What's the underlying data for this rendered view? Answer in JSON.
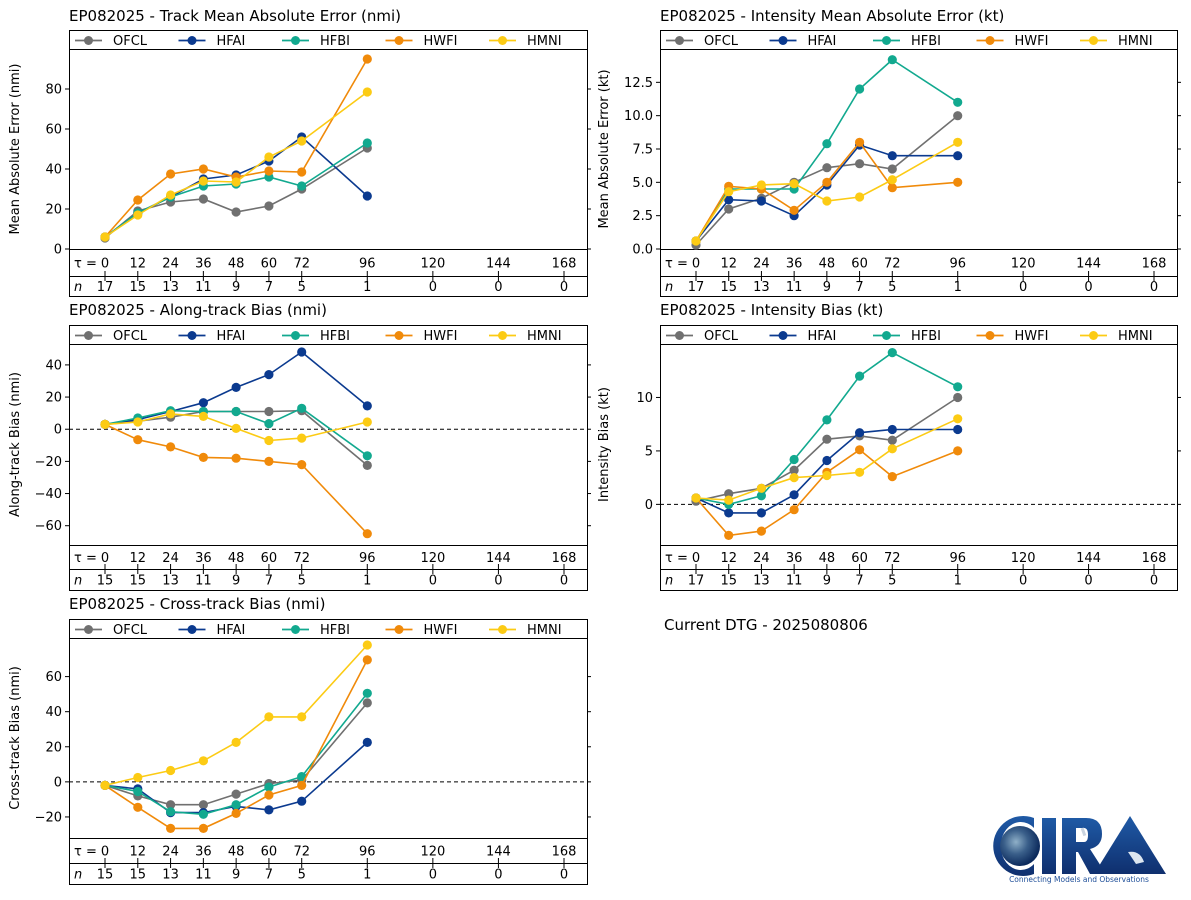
{
  "page": {
    "current_dtg_label": "Current DTG - 2025080806",
    "logo": {
      "name": "CIRA",
      "tagline": "Connecting Models and Observations"
    }
  },
  "legend": [
    {
      "name": "OFCL",
      "color": "#707070"
    },
    {
      "name": "HFAI",
      "color": "#0b3a8f"
    },
    {
      "name": "HFBI",
      "color": "#12a98f"
    },
    {
      "name": "HWFI",
      "color": "#f08a0a"
    },
    {
      "name": "HMNI",
      "color": "#fccb14"
    }
  ],
  "chart_data": [
    {
      "id": "track-mae",
      "type": "line",
      "title": "EP082025 - Track Mean Absolute Error (nmi)",
      "ylabel": "Mean Absolute Error (nmi)",
      "xlabel": "τ",
      "ylim": [
        0,
        100
      ],
      "yticks": [
        0,
        20,
        40,
        60,
        80
      ],
      "zero_line": false,
      "legend_position": "top",
      "x": [
        0,
        12,
        24,
        36,
        48,
        60,
        72,
        96
      ],
      "tau_ticks": [
        0,
        12,
        24,
        36,
        48,
        60,
        72,
        96,
        120,
        144,
        168
      ],
      "n": [
        17,
        15,
        13,
        11,
        9,
        7,
        5,
        1,
        0,
        0,
        0
      ],
      "series": [
        {
          "name": "OFCL",
          "values": [
            5.5,
            19,
            23.5,
            25,
            18.5,
            21.5,
            30,
            50.5
          ]
        },
        {
          "name": "HFAI",
          "values": [
            6,
            18,
            26,
            35,
            37,
            44,
            56,
            26.5
          ]
        },
        {
          "name": "HFBI",
          "values": [
            6,
            18,
            26,
            31.5,
            32.5,
            36,
            31.5,
            53
          ]
        },
        {
          "name": "HWFI",
          "values": [
            6,
            24.5,
            37.5,
            40,
            36,
            39,
            38.5,
            95
          ]
        },
        {
          "name": "HMNI",
          "values": [
            6,
            17,
            27,
            34,
            33.5,
            46,
            54,
            78.5
          ]
        }
      ]
    },
    {
      "id": "intensity-mae",
      "type": "line",
      "title": "EP082025 - Intensity Mean Absolute Error (kt)",
      "ylabel": "Mean Absolute Error (kt)",
      "xlabel": "τ",
      "ylim": [
        0,
        15
      ],
      "yticks": [
        0.0,
        2.5,
        5.0,
        7.5,
        10.0,
        12.5
      ],
      "ytick_labels": [
        "0.0",
        "2.5",
        "5.0",
        "7.5",
        "10.0",
        "12.5"
      ],
      "zero_line": false,
      "legend_position": "top",
      "x": [
        0,
        12,
        24,
        36,
        48,
        60,
        72,
        96
      ],
      "tau_ticks": [
        0,
        12,
        24,
        36,
        48,
        60,
        72,
        96,
        120,
        144,
        168
      ],
      "n": [
        17,
        15,
        13,
        11,
        9,
        7,
        5,
        1,
        0,
        0,
        0
      ],
      "series": [
        {
          "name": "OFCL",
          "values": [
            0.3,
            3.0,
            3.8,
            5.0,
            6.1,
            6.4,
            6.0,
            10.0
          ]
        },
        {
          "name": "HFAI",
          "values": [
            0.6,
            3.7,
            3.6,
            2.5,
            4.8,
            7.8,
            7.0,
            7.0
          ]
        },
        {
          "name": "HFBI",
          "values": [
            0.6,
            4.5,
            4.5,
            4.5,
            7.9,
            12.0,
            14.2,
            11.0
          ]
        },
        {
          "name": "HWFI",
          "values": [
            0.6,
            4.7,
            4.5,
            2.9,
            5.0,
            8.0,
            4.6,
            5.0
          ]
        },
        {
          "name": "HMNI",
          "values": [
            0.6,
            4.3,
            4.8,
            4.9,
            3.6,
            3.9,
            5.2,
            8.0
          ]
        }
      ]
    },
    {
      "id": "along-track-bias",
      "type": "line",
      "title": "EP082025 - Along-track Bias (nmi)",
      "ylabel": "Along-track Bias (nmi)",
      "xlabel": "τ",
      "ylim": [
        -72,
        53
      ],
      "yticks": [
        -60,
        -40,
        -20,
        0,
        20,
        40
      ],
      "ytick_labels": [
        "−60",
        "−40",
        "−20",
        "0",
        "20",
        "40"
      ],
      "zero_line": true,
      "legend_position": "top",
      "x": [
        0,
        12,
        24,
        36,
        48,
        60,
        72,
        96
      ],
      "tau_ticks": [
        0,
        12,
        24,
        36,
        48,
        60,
        72,
        96,
        120,
        144,
        168
      ],
      "n": [
        15,
        15,
        13,
        11,
        9,
        7,
        5,
        1,
        0,
        0,
        0
      ],
      "series": [
        {
          "name": "OFCL",
          "values": [
            3,
            5,
            7.5,
            11,
            11,
            11,
            11.5,
            -22.5
          ]
        },
        {
          "name": "HFAI",
          "values": [
            3,
            6,
            11,
            16.5,
            26,
            34,
            48,
            14.5
          ]
        },
        {
          "name": "HFBI",
          "values": [
            3,
            7,
            11.5,
            11,
            11,
            3.5,
            13,
            -16.5
          ]
        },
        {
          "name": "HWFI",
          "values": [
            3,
            -6.5,
            -11,
            -17.5,
            -18,
            -20,
            -22,
            -65
          ]
        },
        {
          "name": "HMNI",
          "values": [
            3,
            4.5,
            9.5,
            8,
            0.5,
            -7,
            -5.5,
            4.5
          ]
        }
      ]
    },
    {
      "id": "intensity-bias",
      "type": "line",
      "title": "EP082025 - Intensity Bias (kt)",
      "ylabel": "Intensity Bias (kt)",
      "xlabel": "τ",
      "ylim": [
        -3.8,
        15
      ],
      "yticks": [
        0,
        5,
        10
      ],
      "zero_line": true,
      "legend_position": "top",
      "x": [
        0,
        12,
        24,
        36,
        48,
        60,
        72,
        96
      ],
      "tau_ticks": [
        0,
        12,
        24,
        36,
        48,
        60,
        72,
        96,
        120,
        144,
        168
      ],
      "n": [
        17,
        15,
        13,
        11,
        9,
        7,
        5,
        1,
        0,
        0,
        0
      ],
      "series": [
        {
          "name": "OFCL",
          "values": [
            0.3,
            1.0,
            1.5,
            3.2,
            6.1,
            6.4,
            6.0,
            10.0
          ]
        },
        {
          "name": "HFAI",
          "values": [
            0.6,
            -0.8,
            -0.8,
            0.9,
            4.1,
            6.7,
            7.0,
            7.0
          ]
        },
        {
          "name": "HFBI",
          "values": [
            0.6,
            0.0,
            0.8,
            4.2,
            7.9,
            12.0,
            14.2,
            11.0
          ]
        },
        {
          "name": "HWFI",
          "values": [
            0.6,
            -2.9,
            -2.5,
            -0.5,
            3.0,
            5.1,
            2.6,
            5.0
          ]
        },
        {
          "name": "HMNI",
          "values": [
            0.6,
            0.4,
            1.5,
            2.5,
            2.7,
            3.0,
            5.2,
            8.0
          ]
        }
      ]
    },
    {
      "id": "cross-track-bias",
      "type": "line",
      "title": "EP082025 - Cross-track Bias (nmi)",
      "ylabel": "Cross-track Bias (nmi)",
      "xlabel": "τ",
      "ylim": [
        -32,
        82
      ],
      "yticks": [
        -20,
        0,
        20,
        40,
        60
      ],
      "ytick_labels": [
        "−20",
        "0",
        "20",
        "40",
        "60"
      ],
      "zero_line": true,
      "legend_position": "top",
      "x": [
        0,
        12,
        24,
        36,
        48,
        60,
        72,
        96
      ],
      "tau_ticks": [
        0,
        12,
        24,
        36,
        48,
        60,
        72,
        96,
        120,
        144,
        168
      ],
      "n": [
        15,
        15,
        13,
        11,
        9,
        7,
        5,
        1,
        0,
        0,
        0
      ],
      "series": [
        {
          "name": "OFCL",
          "values": [
            -2,
            -8,
            -13,
            -13,
            -7,
            -1,
            1,
            45
          ]
        },
        {
          "name": "HFAI",
          "values": [
            -2,
            -4,
            -17.5,
            -17.5,
            -14,
            -16,
            -11,
            22.5
          ]
        },
        {
          "name": "HFBI",
          "values": [
            -2,
            -5.5,
            -17,
            -18.5,
            -13,
            -3,
            3,
            50.5
          ]
        },
        {
          "name": "HWFI",
          "values": [
            -2,
            -14.5,
            -26.5,
            -26.5,
            -18,
            -7.5,
            -2,
            69.5
          ]
        },
        {
          "name": "HMNI",
          "values": [
            -2,
            2.5,
            6.5,
            12,
            22.5,
            37,
            37,
            78
          ]
        }
      ]
    }
  ]
}
